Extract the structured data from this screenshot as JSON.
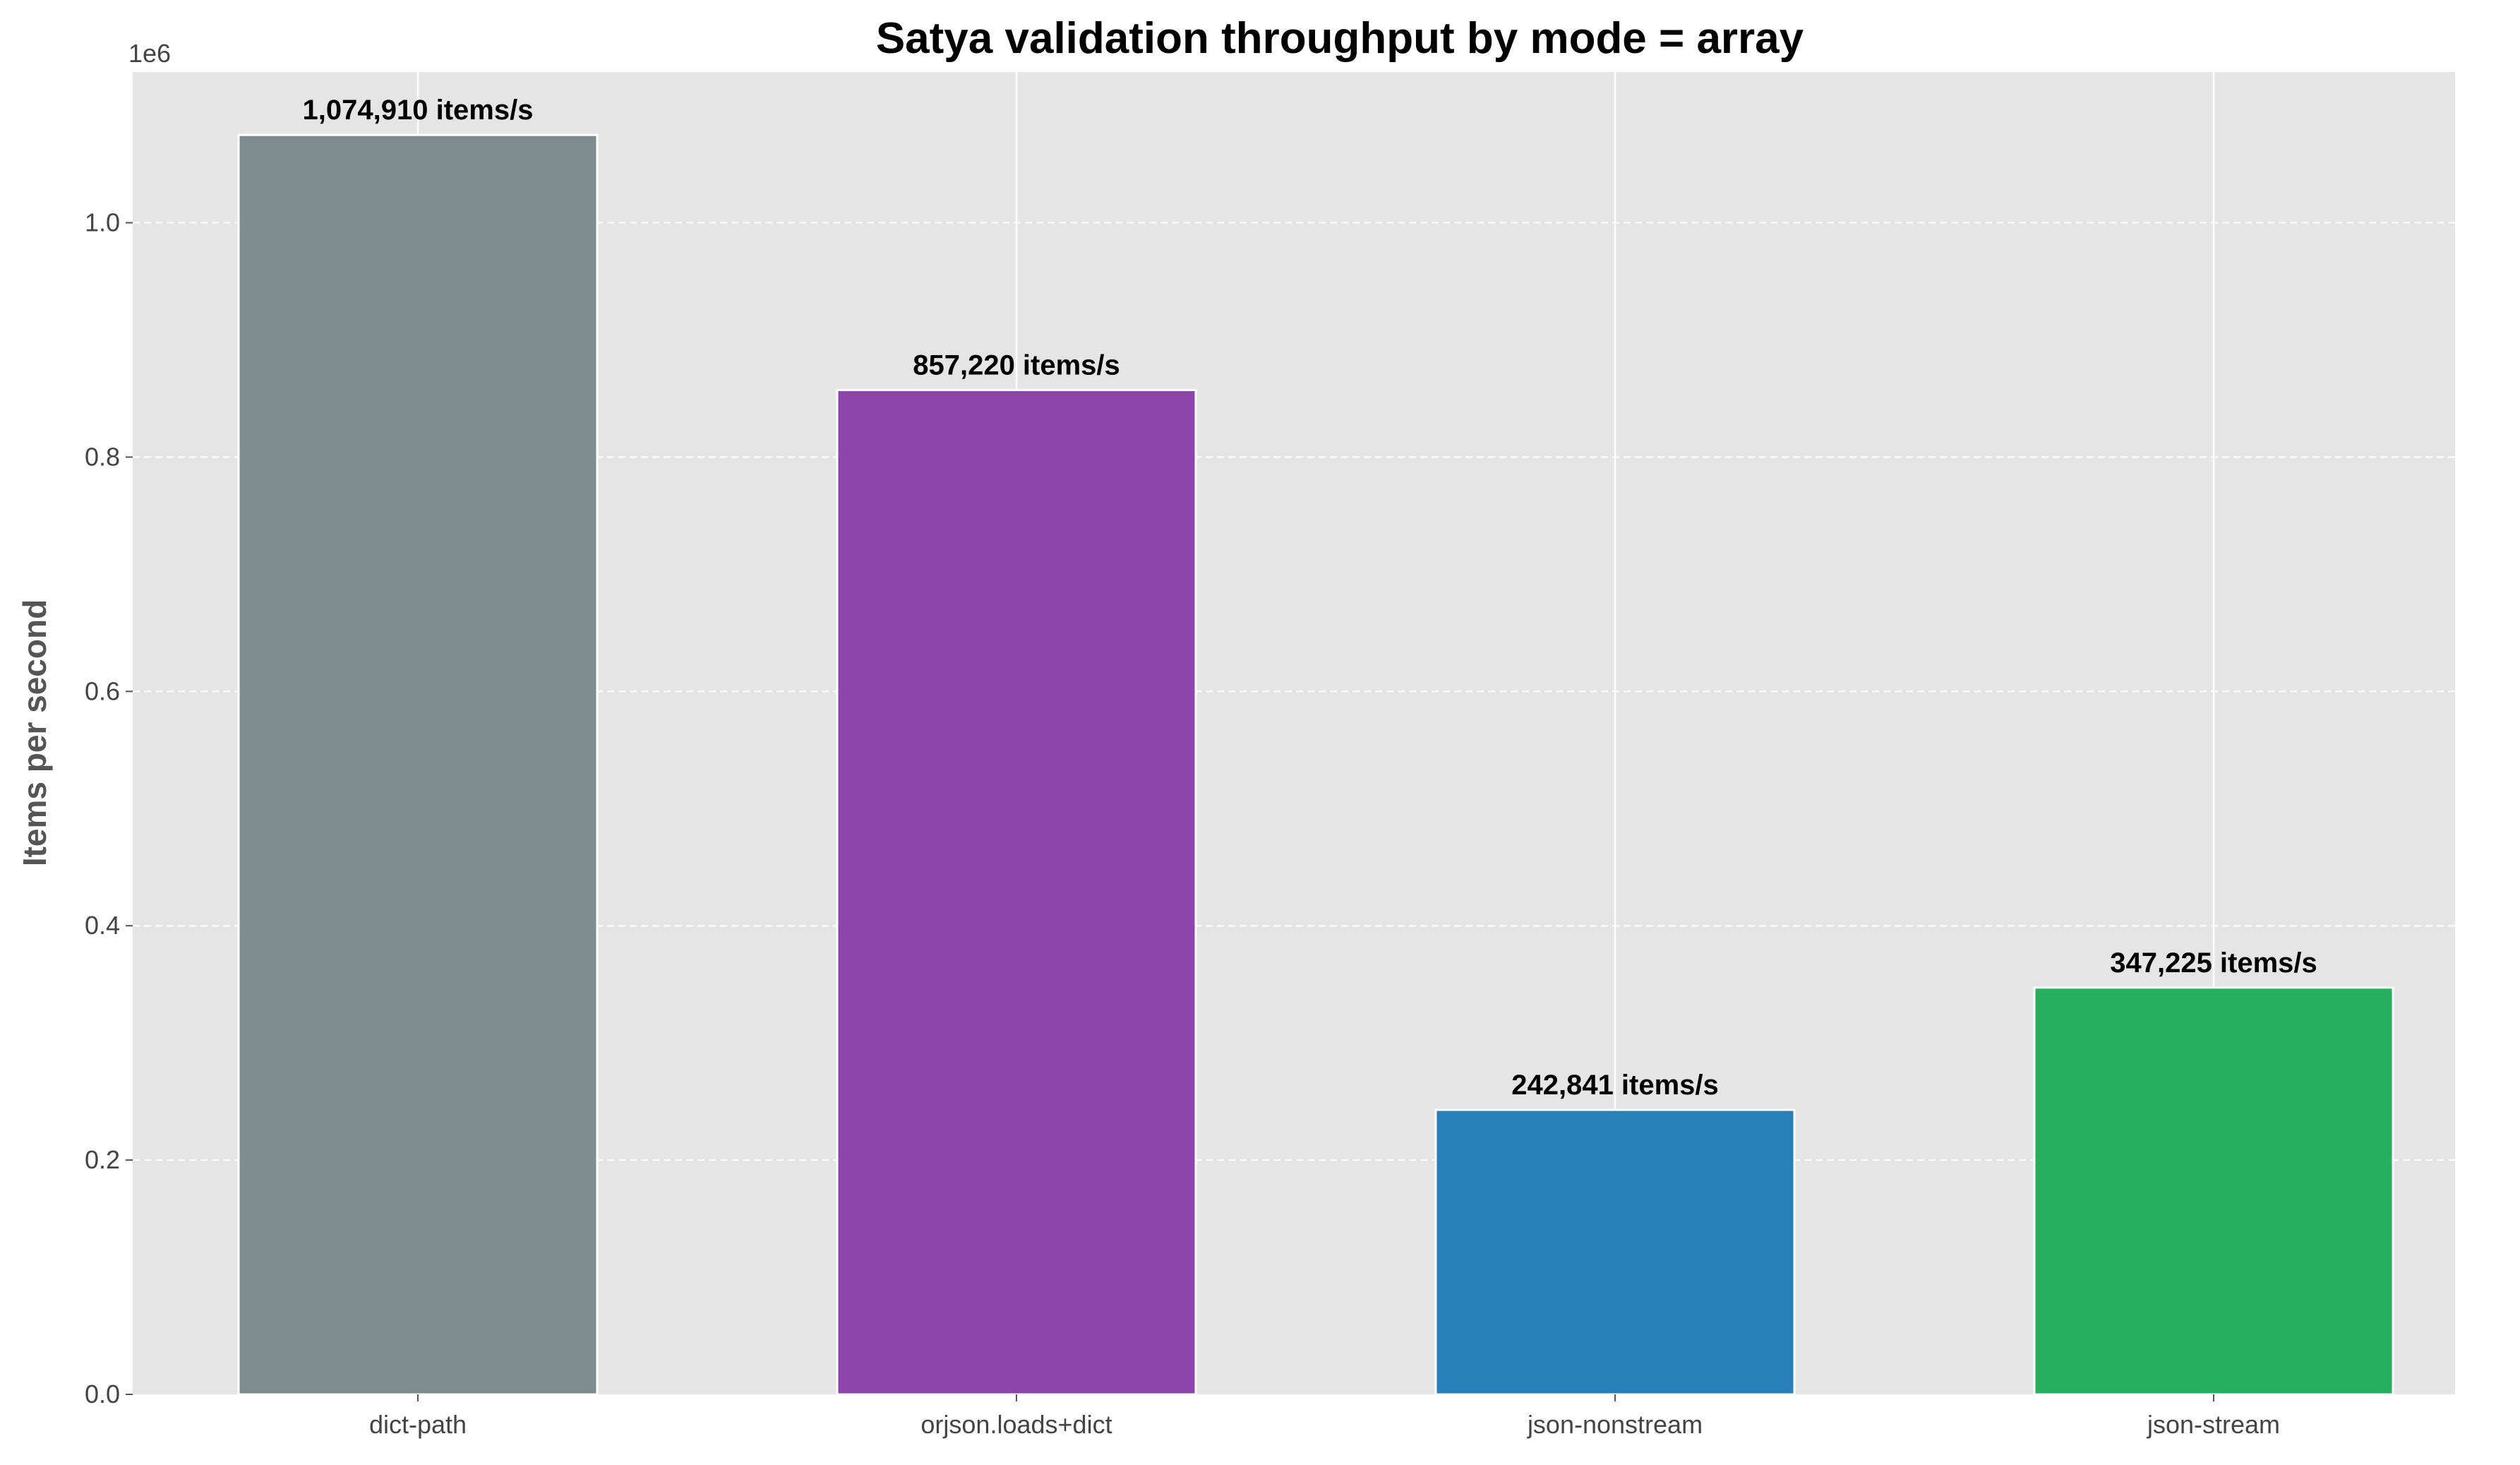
{
  "chart_data": {
    "type": "bar",
    "title": "Satya validation throughput by mode = array",
    "xlabel": "",
    "ylabel": "Items per second",
    "y_offset_label": "1e6",
    "categories": [
      "dict-path",
      "orjson.loads+dict",
      "json-nonstream",
      "json-stream"
    ],
    "values": [
      1074910,
      857220,
      242841,
      347225
    ],
    "data_labels": [
      "1,074,910 items/s",
      "857,220 items/s",
      "242,841 items/s",
      "347,225 items/s"
    ],
    "colors": [
      "#7f8c8d",
      "#8e44ad",
      "#2980b9",
      "#27ae60"
    ],
    "ylim": [
      0,
      1128655
    ],
    "y_ticks": [
      0,
      200000,
      400000,
      600000,
      800000,
      1000000
    ],
    "y_tick_labels": [
      "0.0",
      "0.2",
      "0.4",
      "0.6",
      "0.8",
      "1.0"
    ],
    "grid": true,
    "background": "#e5e5e5"
  }
}
